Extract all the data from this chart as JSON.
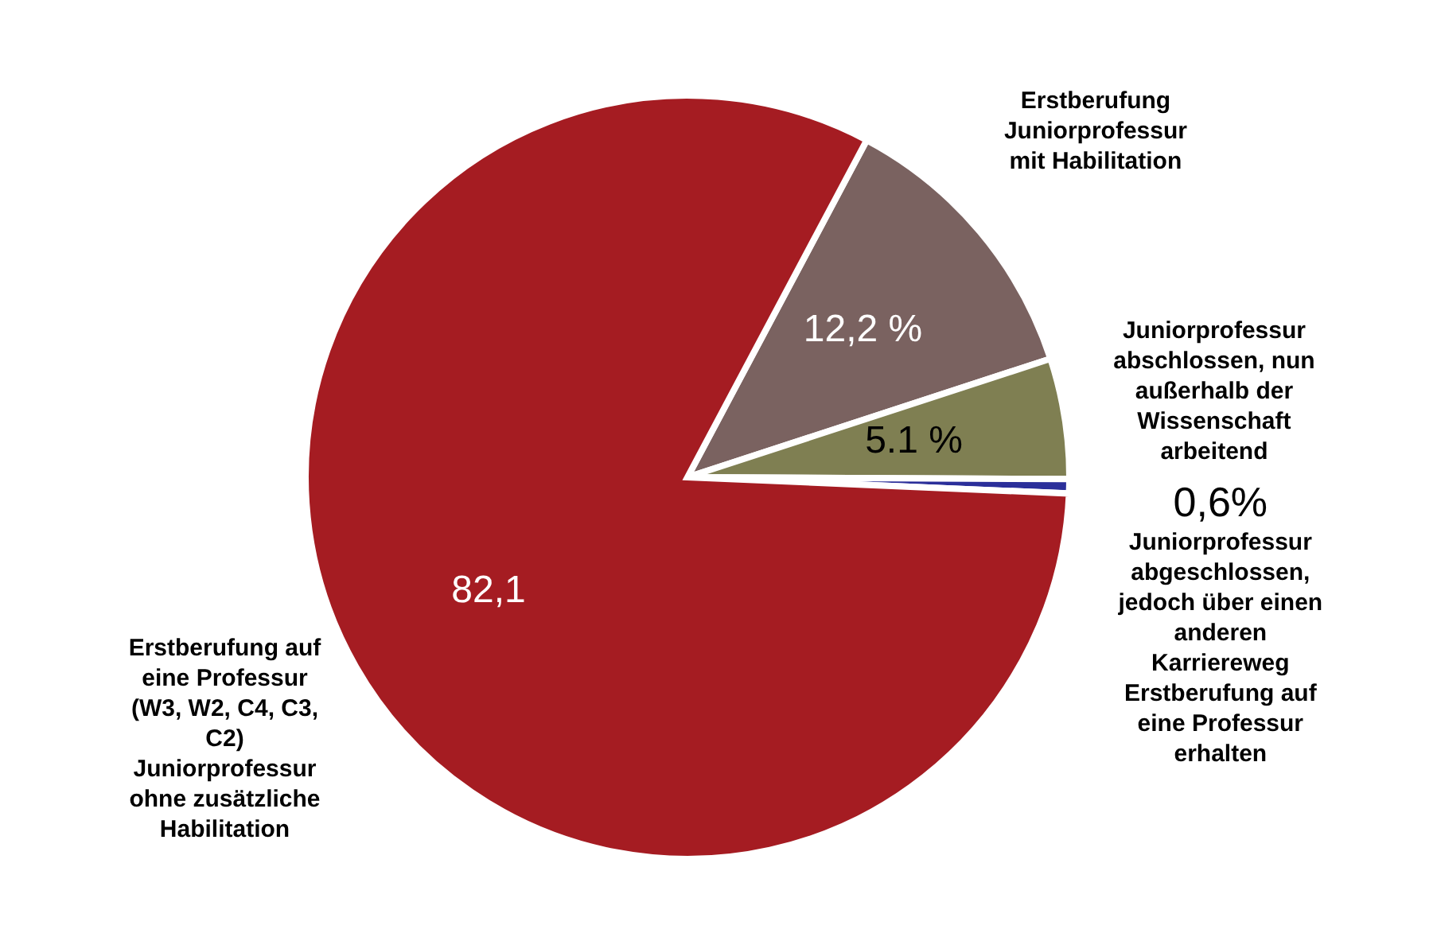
{
  "chart_data": {
    "type": "pie",
    "categories": [
      "Erstberufung Juniorprofessur mit Habilitation",
      "Juniorprofessur abschlossen, nun außerhalb der Wissenschaft arbeitend",
      "Juniorprofessur abgeschlossen, jedoch über einen anderen Karriereweg Erstberufung auf eine Professur erhalten",
      "Erstberufung auf eine Professur (W3, W2, C4, C3, C2) Juniorprofessur ohne zusätzliche Habilitation"
    ],
    "values": [
      12.2,
      5.1,
      0.6,
      82.1
    ],
    "colors": [
      "#7a6260",
      "#7f7f52",
      "#2b2f9a",
      "#a51c22"
    ],
    "value_labels": [
      "12,2 %",
      "5.1 %",
      "0,6%",
      "82,1"
    ]
  }
}
